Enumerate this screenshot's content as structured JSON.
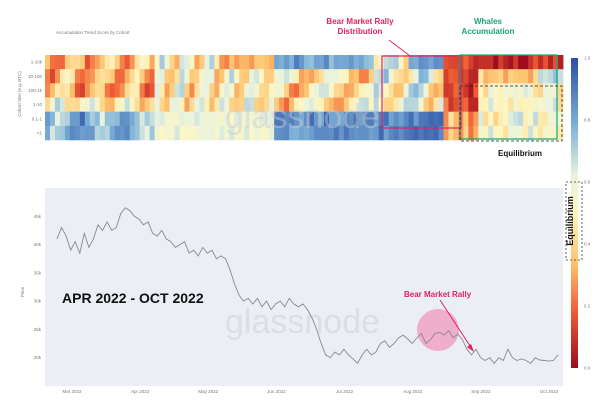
{
  "chart_data": [
    {
      "type": "heatmap",
      "title": "Accumulation Trend Score by Cohort",
      "ylabel": "Cohort Size (e.g. BTC)",
      "row_labels": [
        "1-10k",
        "10-100",
        "100-1k",
        "1-10",
        "0.1-1",
        "<1"
      ],
      "watermark": "glassnode",
      "annotations": [
        {
          "text": "Bear Market Rally\nDistribution",
          "color": "#e0245e"
        },
        {
          "text": "Whales\nAccumulation",
          "color": "#1aa37a"
        },
        {
          "text": "Equilibrium",
          "color": "#111111"
        }
      ]
    },
    {
      "type": "line",
      "ylabel": "Price",
      "watermark": "glassnode",
      "period_label": "APR 2022 - OCT 2022",
      "x_tick_labels": [
        "Mar 2022",
        "Apr 2022",
        "May 2022",
        "Jun 2022",
        "Jul 2022",
        "Aug 2022",
        "Sep 2022",
        "Oct 2022"
      ],
      "y_tick_labels": [
        "45k",
        "40k",
        "35k",
        "30k",
        "25k",
        "20k"
      ],
      "series": [
        {
          "color": "#888888",
          "values": [
            41,
            43,
            41.5,
            39,
            40.5,
            38.5,
            42,
            39.5,
            41,
            43.5,
            42.5,
            44,
            42.5,
            43,
            45.5,
            46.5,
            46,
            45,
            44.5,
            43.5,
            44,
            42,
            41.5,
            42.5,
            41,
            40.5,
            39.5,
            40,
            40.5,
            38.5,
            39,
            38,
            39.5,
            38.5,
            39,
            37.5,
            38,
            37.5,
            35.5,
            33,
            31,
            30,
            30.5,
            29.5,
            30.5,
            29,
            30,
            28.5,
            29.5,
            30,
            29,
            30.5,
            29.5,
            29,
            29.5,
            28.5,
            27,
            25,
            22.5,
            20.5,
            20,
            21,
            20.5,
            21.5,
            20.5,
            19.8,
            19,
            20.5,
            21.5,
            20.5,
            21,
            22.5,
            23,
            21.8,
            22.5,
            23.5,
            24,
            23.3,
            22.5,
            23.5,
            24.3,
            22.5,
            23.2,
            24.3,
            24.5,
            24,
            24.8,
            23.5,
            24.2,
            23.2,
            21.5,
            20.5,
            21.5,
            20,
            19.5,
            20,
            19,
            20,
            19.5,
            21.5,
            20,
            19.5,
            19.8,
            19.5,
            19,
            20,
            19.6,
            19.5,
            19.4,
            19.5,
            20.5
          ]
        }
      ],
      "annotations": [
        {
          "text": "Bear Market Rally",
          "color": "#e0245e"
        }
      ]
    },
    {
      "type": "colorbar",
      "label": "Equilibrium",
      "tick_labels": [
        "1.0",
        "0.8",
        "0.6",
        "0.4",
        "0.2",
        "0.0"
      ]
    }
  ]
}
